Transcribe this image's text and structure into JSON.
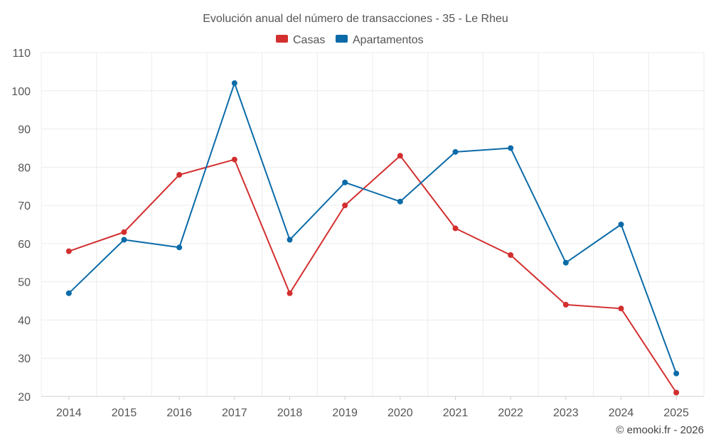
{
  "chart_data": {
    "type": "line",
    "title": "Evolución anual del número de transacciones - 35 - Le Rheu",
    "categories": [
      "2014",
      "2015",
      "2016",
      "2017",
      "2018",
      "2019",
      "2020",
      "2021",
      "2022",
      "2023",
      "2024",
      "2025"
    ],
    "series": [
      {
        "name": "Casas",
        "color": "#d32f2f",
        "values": [
          58,
          63,
          78,
          82,
          47,
          70,
          83,
          64,
          57,
          44,
          43,
          21
        ]
      },
      {
        "name": "Apartamentos",
        "color": "#0b6ba8",
        "values": [
          47,
          61,
          59,
          102,
          61,
          76,
          71,
          84,
          85,
          55,
          65,
          26
        ]
      }
    ],
    "yticks": [
      20,
      30,
      40,
      50,
      60,
      70,
      80,
      90,
      100,
      110
    ],
    "ylim": [
      20,
      110
    ],
    "grid": true,
    "legend": "top-center",
    "xlabel": "",
    "ylabel": ""
  },
  "credit": "© emooki.fr - 2026"
}
